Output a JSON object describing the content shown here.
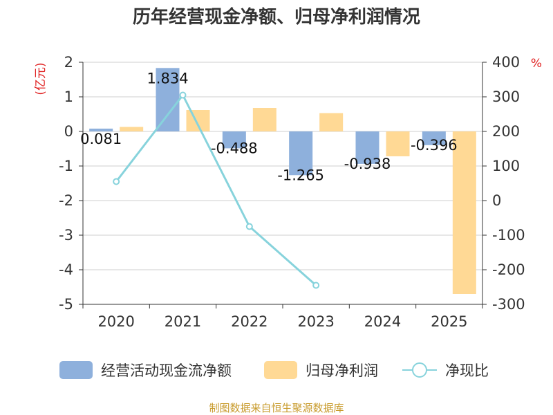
{
  "chart_data": {
    "type": "bar+line",
    "title": "历年经营现金净额、归母净利润情况",
    "categories": [
      "2020",
      "2021",
      "2022",
      "2023",
      "2024",
      "2025"
    ],
    "left_axis": {
      "unit": "(亿元)",
      "ylim": [
        -5,
        2
      ],
      "ticks": [
        2,
        1,
        0,
        -1,
        -2,
        -3,
        -4,
        -5
      ]
    },
    "right_axis": {
      "unit": "%",
      "ylim": [
        -300,
        400
      ],
      "ticks": [
        400,
        300,
        200,
        100,
        0,
        -100,
        -200,
        -300
      ]
    },
    "series": [
      {
        "name": "经营活动现金流净额",
        "type": "bar",
        "axis": "left",
        "color": "#8eb0dc",
        "values": [
          0.081,
          1.834,
          -0.488,
          -1.265,
          -0.938,
          -0.396
        ],
        "labels": [
          "0.081",
          "1.834",
          "-0.488",
          "-1.265",
          "-0.938",
          "-0.396"
        ]
      },
      {
        "name": "归母净利润",
        "type": "bar",
        "axis": "left",
        "color": "#ffd995",
        "values": [
          0.13,
          0.62,
          0.68,
          0.53,
          -0.72,
          -4.7
        ]
      },
      {
        "name": "净现比",
        "type": "line",
        "axis": "right",
        "color": "#87d3dc",
        "values": [
          55,
          305,
          -75,
          -245,
          null,
          null
        ]
      }
    ],
    "legend_position": "bottom",
    "grid": true
  },
  "footer": {
    "source": "制图数据来自恒生聚源数据库"
  }
}
